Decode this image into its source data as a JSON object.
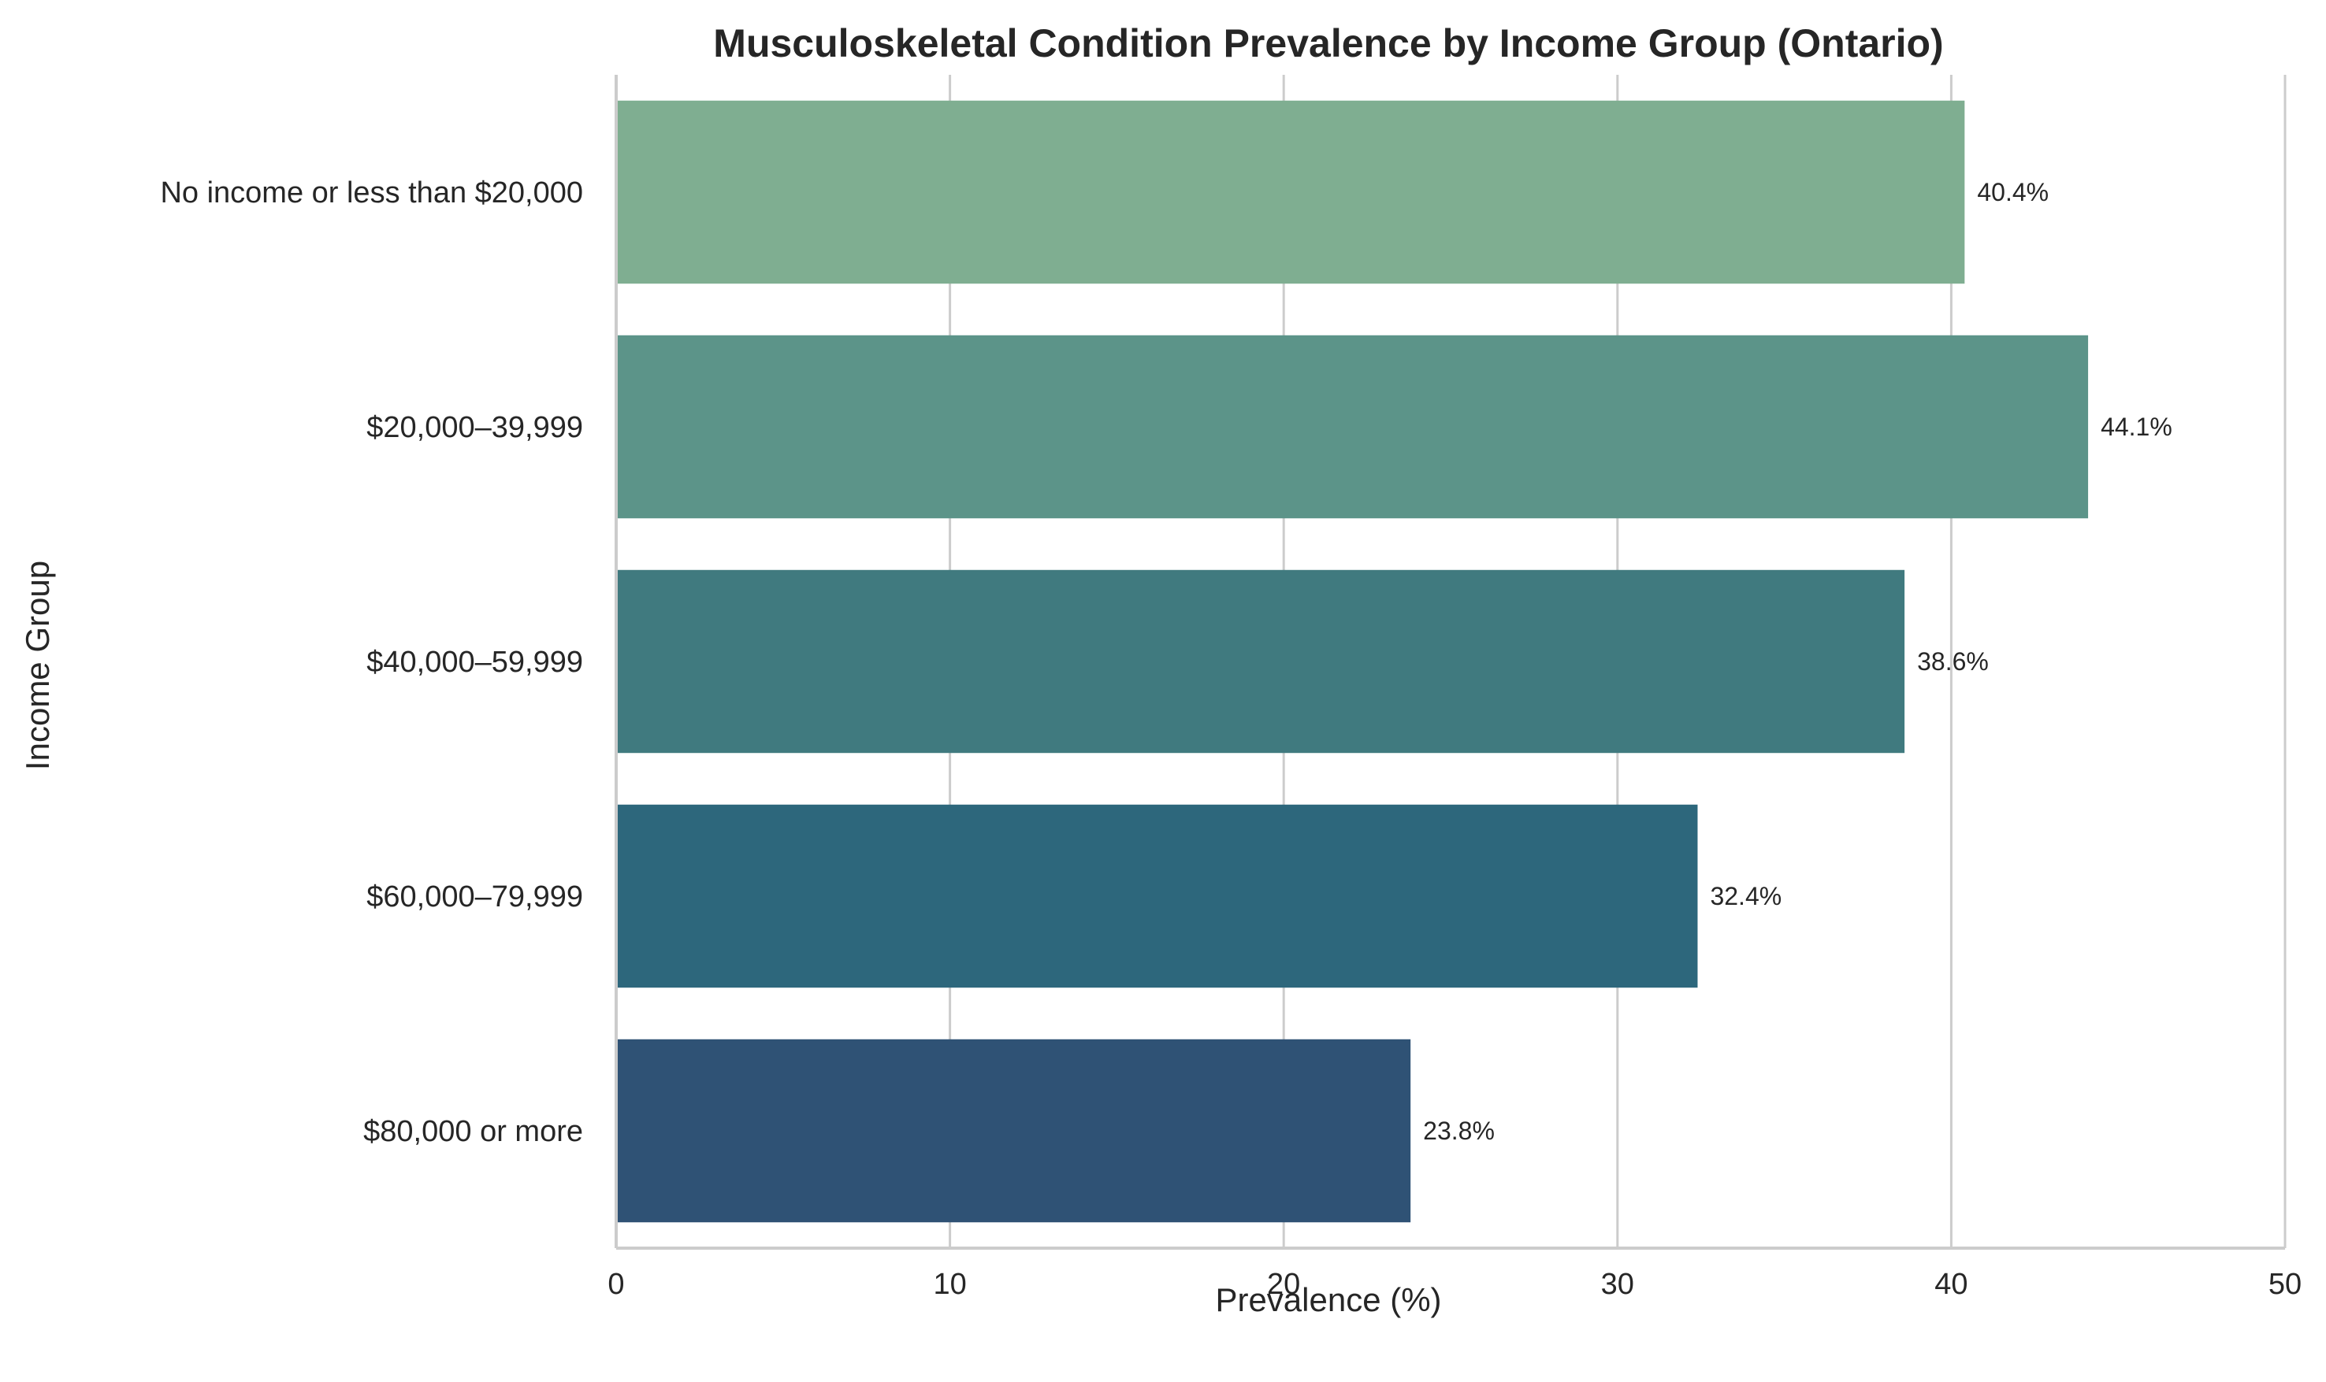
{
  "chart_data": {
    "type": "bar",
    "orientation": "horizontal",
    "title": "Musculoskeletal Condition Prevalence by Income Group (Ontario)",
    "xlabel": "Prevalence (%)",
    "ylabel": "Income Group",
    "xlim": [
      0,
      50
    ],
    "xticks": [
      "0",
      "10",
      "20",
      "30",
      "40",
      "50"
    ],
    "grid": "x",
    "categories": [
      "No income or less than $20,000",
      "$20,000–39,999",
      "$40,000–59,999",
      "$60,000–79,999",
      "$80,000 or more"
    ],
    "values": [
      40.4,
      44.1,
      38.6,
      32.4,
      23.8
    ],
    "value_labels": [
      "40.4%",
      "44.1%",
      "38.6%",
      "32.4%",
      "23.8%"
    ],
    "colors": [
      "#7fae91",
      "#5c9489",
      "#407a7f",
      "#2d677c",
      "#2f5275"
    ]
  }
}
